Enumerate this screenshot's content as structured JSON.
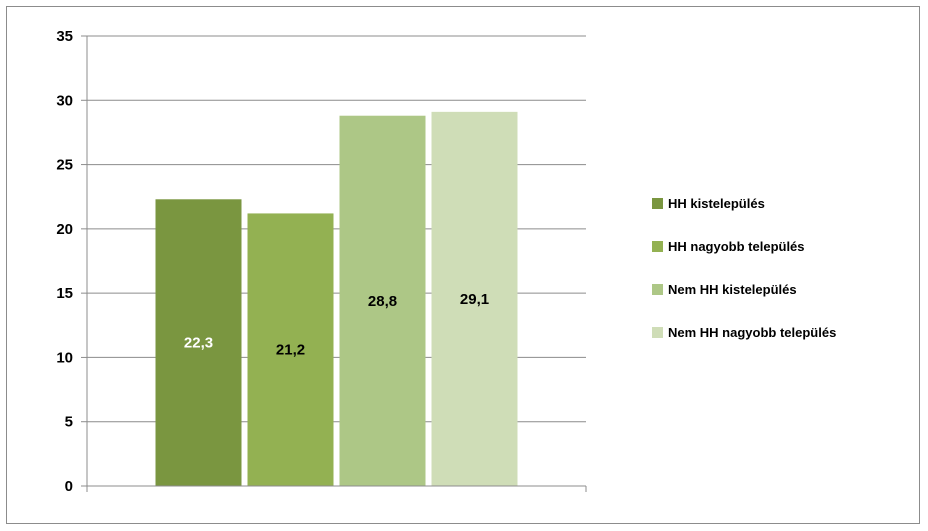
{
  "chart_data": {
    "type": "bar",
    "categories": [
      "HH kistelepülés",
      "HH nagyobb település",
      "Nem HH kistelepülés",
      "Nem HH nagyobb település"
    ],
    "values": [
      22.3,
      21.2,
      28.8,
      29.1
    ],
    "value_labels": [
      "22,3",
      "21,2",
      "28,8",
      "29,1"
    ],
    "colors": [
      "#7a9640",
      "#93b152",
      "#adc786",
      "#cfddb7"
    ],
    "label_colors": [
      "#ffffff",
      "#000000",
      "#000000",
      "#000000"
    ],
    "ylim": [
      0,
      35
    ],
    "yticks": [
      0,
      5,
      10,
      15,
      20,
      25,
      30,
      35
    ],
    "ytick_labels": [
      "0",
      "5",
      "10",
      "15",
      "20",
      "25",
      "30",
      "35"
    ],
    "grid": true,
    "legend_position": "right",
    "title": "",
    "xlabel": "",
    "ylabel": ""
  }
}
